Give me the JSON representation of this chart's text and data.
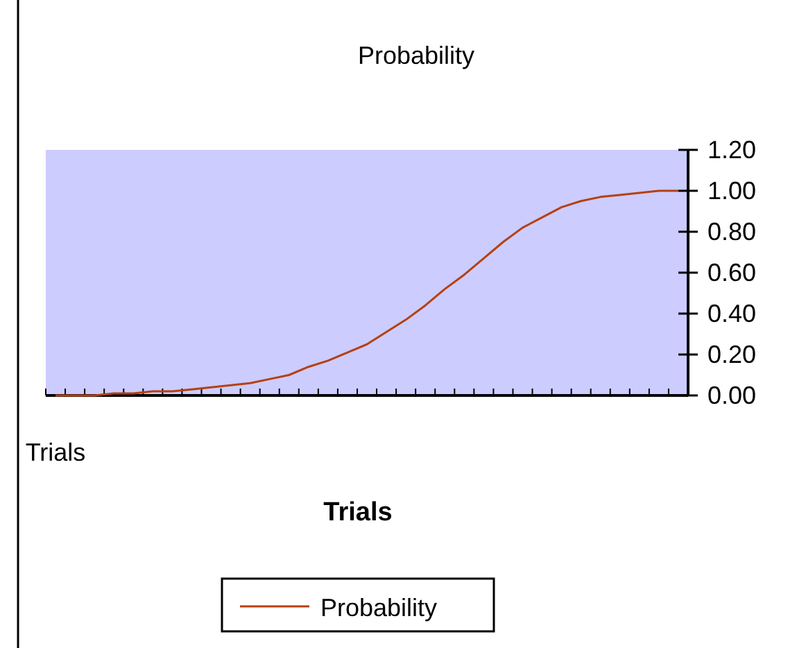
{
  "chart_data": {
    "type": "line",
    "title": "Probability",
    "xlabel": "Trials",
    "categories": [
      "Trials",
      null,
      null,
      null,
      null,
      null,
      null,
      null,
      null,
      null,
      null,
      null,
      null,
      null,
      null,
      null,
      null,
      null,
      null,
      null,
      null,
      null,
      null,
      null,
      null,
      null,
      null,
      null,
      null,
      null,
      null,
      null,
      null
    ],
    "series": [
      {
        "name": "Probability",
        "color": "#b5400f",
        "values": [
          0.0,
          0.0,
          0.0,
          0.01,
          0.01,
          0.02,
          0.02,
          0.03,
          0.04,
          0.05,
          0.06,
          0.08,
          0.1,
          0.14,
          0.17,
          0.21,
          0.25,
          0.31,
          0.37,
          0.44,
          0.52,
          0.59,
          0.67,
          0.75,
          0.82,
          0.87,
          0.92,
          0.95,
          0.97,
          0.98,
          0.99,
          1.0,
          1.0
        ]
      }
    ],
    "ylim": [
      0,
      1.2
    ],
    "yticks": [
      {
        "value": 0,
        "label": "0.00"
      },
      {
        "value": 0.2,
        "label": "0.20"
      },
      {
        "value": 0.4,
        "label": "0.40"
      },
      {
        "value": 0.6,
        "label": "0.60"
      },
      {
        "value": 0.8,
        "label": "0.80"
      },
      {
        "value": 1,
        "label": "1.00"
      },
      {
        "value": 1.2,
        "label": "1.20"
      }
    ],
    "grid": false,
    "legend": "bottom",
    "marker": "none",
    "line_style": "solid"
  }
}
